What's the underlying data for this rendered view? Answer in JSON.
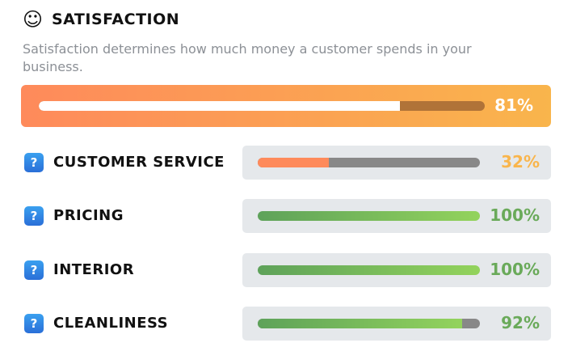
{
  "title": "SATISFACTION",
  "title_icon": "smiley-icon",
  "description": "Satisfaction determines how much money a customer spends in your business.",
  "overall": {
    "percent": 81,
    "label": "81%"
  },
  "factors": [
    {
      "label": "CUSTOMER SERVICE",
      "percent": 32,
      "value": "32%",
      "color": "#f9b54c",
      "fill": "#fe8a5b"
    },
    {
      "label": "PRICING",
      "percent": 100,
      "value": "100%",
      "color": "#6aaa5a",
      "fill": "linear-gradient(90deg,#5ea25a,#93d35c)"
    },
    {
      "label": "INTERIOR",
      "percent": 100,
      "value": "100%",
      "color": "#6aaa5a",
      "fill": "linear-gradient(90deg,#5ea25a,#93d35c)"
    },
    {
      "label": "CLEANLINESS",
      "percent": 92,
      "value": "92%",
      "color": "#6aaa5a",
      "fill": "linear-gradient(90deg,#5ea25a,#93d35c)"
    }
  ],
  "help_glyph": "?"
}
